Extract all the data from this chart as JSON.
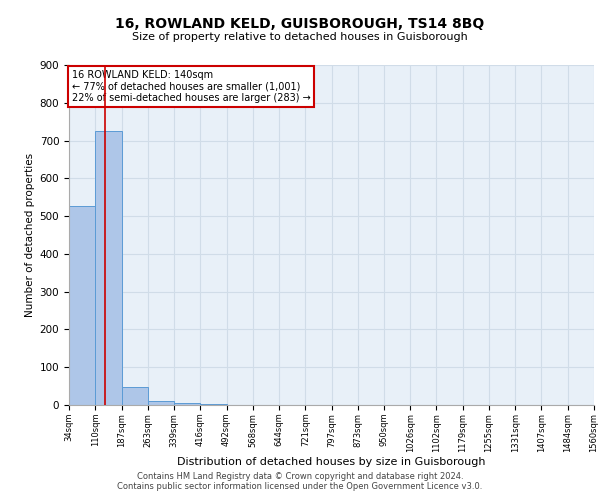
{
  "title": "16, ROWLAND KELD, GUISBOROUGH, TS14 8BQ",
  "subtitle": "Size of property relative to detached houses in Guisborough",
  "xlabel": "Distribution of detached houses by size in Guisborough",
  "ylabel": "Number of detached properties",
  "footer_line1": "Contains HM Land Registry data © Crown copyright and database right 2024.",
  "footer_line2": "Contains public sector information licensed under the Open Government Licence v3.0.",
  "annotation_line1": "16 ROWLAND KELD: 140sqm",
  "annotation_line2": "← 77% of detached houses are smaller (1,001)",
  "annotation_line3": "22% of semi-detached houses are larger (283) →",
  "property_size": 140,
  "bar_edges": [
    34,
    110,
    187,
    263,
    339,
    416,
    492,
    568,
    644,
    721,
    797,
    873,
    950,
    1026,
    1102,
    1179,
    1255,
    1331,
    1407,
    1484,
    1560
  ],
  "bar_values": [
    527,
    725,
    47,
    10,
    6,
    2,
    0,
    0,
    0,
    0,
    0,
    0,
    0,
    0,
    0,
    0,
    0,
    0,
    0,
    0
  ],
  "bar_color": "#aec6e8",
  "bar_edge_color": "#5b9bd5",
  "red_line_color": "#cc0000",
  "grid_color": "#d0dce8",
  "background_color": "#e8f0f8",
  "ylim": [
    0,
    900
  ],
  "yticks": [
    0,
    100,
    200,
    300,
    400,
    500,
    600,
    700,
    800,
    900
  ]
}
